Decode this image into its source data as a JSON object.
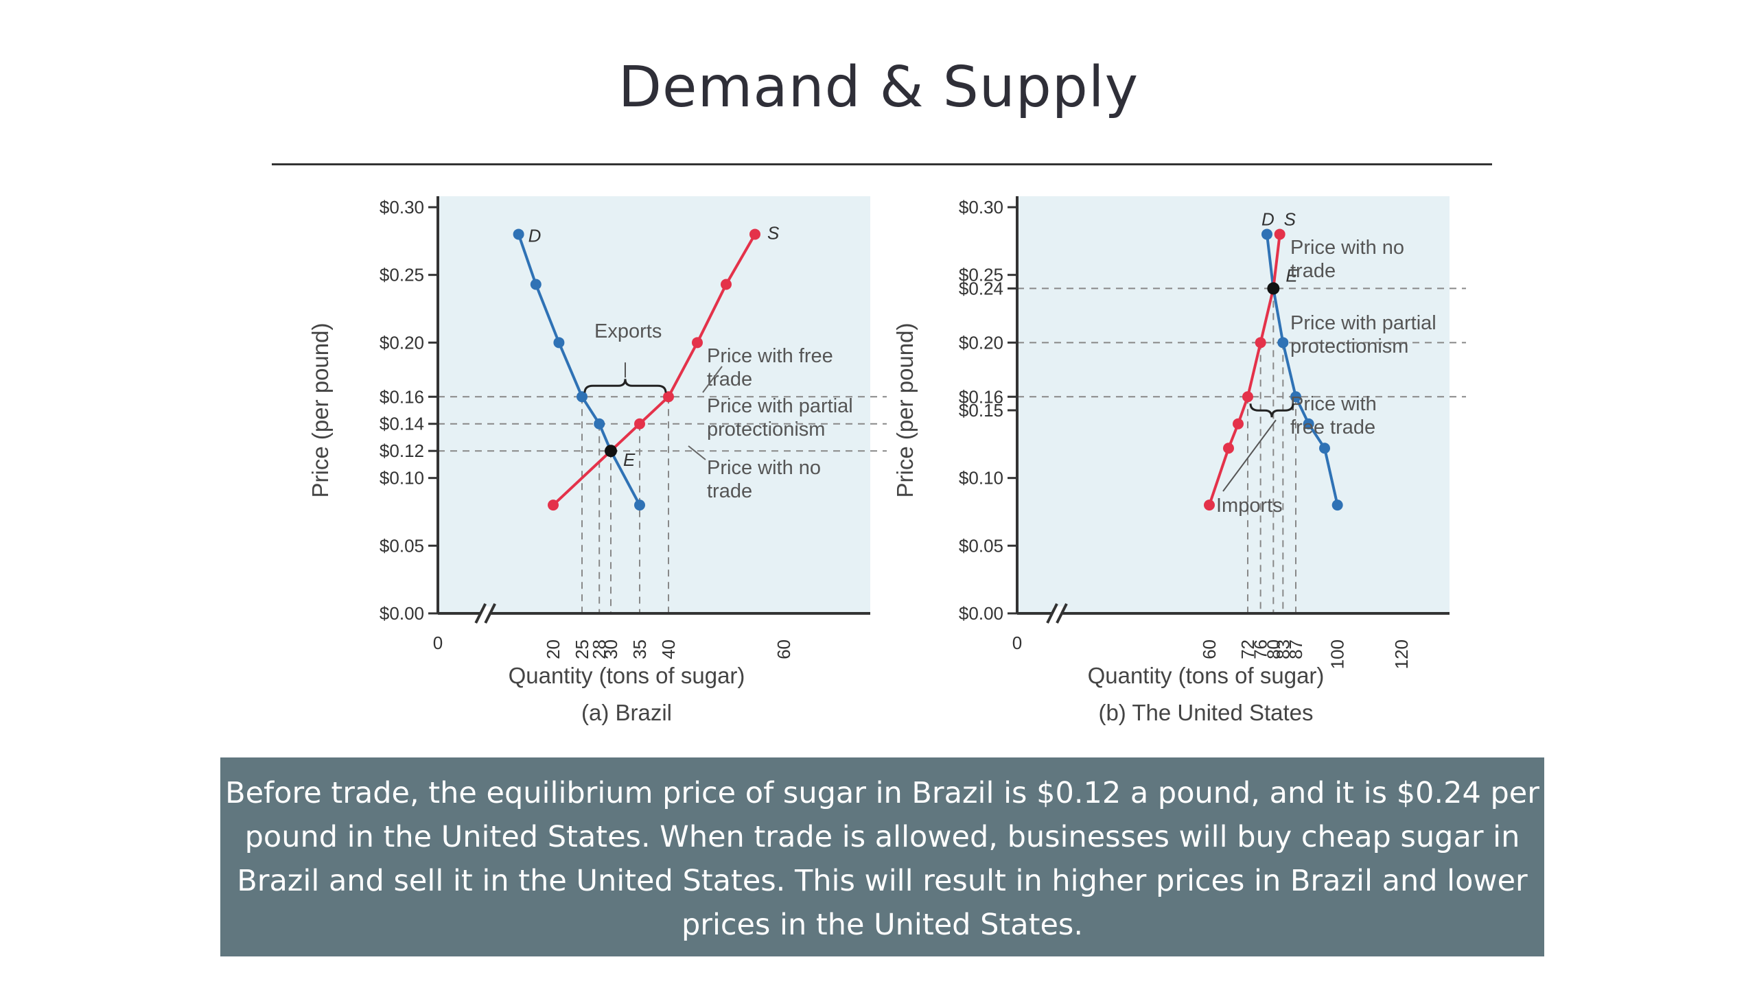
{
  "slide": {
    "title": "Demand & Supply",
    "caption": "Before trade, the equilibrium price of sugar in Brazil is $0.12 a pound, and it is $0.24 per pound in the United States. When trade is allowed, businesses will buy cheap sugar in Brazil and sell it in the United States. This will result in higher prices in Brazil and lower prices in the United States."
  },
  "colors": {
    "demand": "#2f72b5",
    "supply": "#e4324a",
    "equilibrium": "#111111",
    "plot_bg": "#e6f1f5",
    "caption_bg": "#61777f"
  },
  "chart_data": [
    {
      "type": "line",
      "panel_title": "(a) Brazil",
      "xlabel": "Quantity (tons of sugar)",
      "ylabel": "Price (per pound)",
      "xlim": [
        0,
        75
      ],
      "ylim": [
        0,
        0.3
      ],
      "x_axis_break": true,
      "x_ticks": [
        0,
        20,
        25,
        28,
        30,
        35,
        40,
        60
      ],
      "y_ticks": [
        0.0,
        0.05,
        0.1,
        0.12,
        0.14,
        0.16,
        0.2,
        0.25,
        0.3
      ],
      "y_tick_labels": [
        "$0.00",
        "$0.05",
        "$0.10",
        "$0.12",
        "$0.14",
        "$0.16",
        "$0.20",
        "$0.25",
        "$0.30"
      ],
      "series": [
        {
          "name": "D",
          "kind": "demand",
          "points": [
            [
              14,
              0.28
            ],
            [
              17,
              0.243
            ],
            [
              21,
              0.2
            ],
            [
              25,
              0.16
            ],
            [
              28,
              0.14
            ],
            [
              30,
              0.12
            ],
            [
              35,
              0.08
            ]
          ]
        },
        {
          "name": "S",
          "kind": "supply",
          "points": [
            [
              20,
              0.08
            ],
            [
              30,
              0.12
            ],
            [
              35,
              0.14
            ],
            [
              40,
              0.16
            ],
            [
              45,
              0.2
            ],
            [
              50,
              0.243
            ],
            [
              55,
              0.28
            ]
          ]
        }
      ],
      "equilibrium": {
        "label": "E",
        "x": 30,
        "y": 0.12
      },
      "price_lines": [
        {
          "price": 0.16,
          "label": "Price with free trade"
        },
        {
          "price": 0.14,
          "label": "Price with partial protectionism"
        },
        {
          "price": 0.12,
          "label": "Price with no trade"
        }
      ],
      "bracket": {
        "label": "Exports",
        "from": 25,
        "to": 40,
        "price": 0.16
      }
    },
    {
      "type": "line",
      "panel_title": "(b) The United States",
      "xlabel": "Quantity (tons of sugar)",
      "ylabel": "Price (per pound)",
      "xlim": [
        0,
        135
      ],
      "ylim": [
        0,
        0.3
      ],
      "x_axis_break": true,
      "x_ticks": [
        0,
        60,
        72,
        76,
        80,
        83,
        87,
        100,
        120
      ],
      "y_ticks": [
        0.0,
        0.05,
        0.1,
        0.15,
        0.16,
        0.2,
        0.24,
        0.25,
        0.3
      ],
      "y_tick_labels": [
        "$0.00",
        "$0.05",
        "$0.10",
        "$0.15",
        "$0.16",
        "$0.20",
        "$0.24",
        "$0.25",
        "$0.30"
      ],
      "series": [
        {
          "name": "D",
          "kind": "demand",
          "points": [
            [
              78,
              0.28
            ],
            [
              80,
              0.24
            ],
            [
              83,
              0.2
            ],
            [
              87,
              0.16
            ],
            [
              91,
              0.14
            ],
            [
              96,
              0.122
            ],
            [
              100,
              0.08
            ]
          ]
        },
        {
          "name": "S",
          "kind": "supply",
          "points": [
            [
              60,
              0.08
            ],
            [
              66,
              0.122
            ],
            [
              69,
              0.14
            ],
            [
              72,
              0.16
            ],
            [
              76,
              0.2
            ],
            [
              80,
              0.24
            ],
            [
              82,
              0.28
            ]
          ]
        }
      ],
      "equilibrium": {
        "label": "E",
        "x": 80,
        "y": 0.24
      },
      "price_lines": [
        {
          "price": 0.24,
          "label": "Price with no trade"
        },
        {
          "price": 0.2,
          "label": "Price with partial protectionism"
        },
        {
          "price": 0.16,
          "label": "Price with free trade"
        }
      ],
      "bracket": {
        "label": "Imports",
        "from": 72,
        "to": 87,
        "price": 0.16
      }
    }
  ]
}
